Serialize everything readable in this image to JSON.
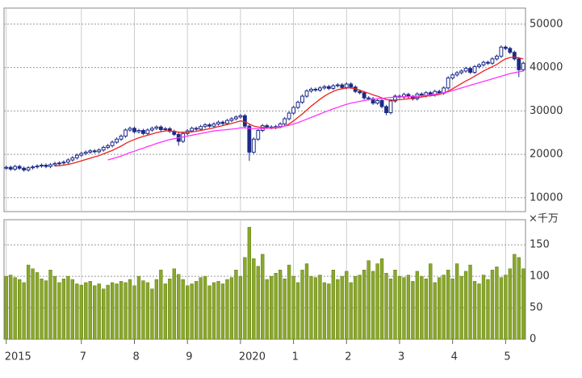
{
  "chart_data": [
    {
      "type": "candlestick",
      "open": [
        16800,
        17000,
        16600,
        17200,
        16800,
        16400,
        16900,
        17100,
        17300,
        17500,
        17200,
        17600,
        17900,
        18000,
        18200,
        18700,
        19200,
        19800,
        20200,
        20500,
        20800,
        20600,
        21000,
        21600,
        22000,
        22800,
        23500,
        24200,
        25600,
        26000,
        25200,
        25500,
        24800,
        25600,
        26000,
        26300,
        25700,
        25900,
        25300,
        24600,
        23000,
        24800,
        25400,
        26000,
        25800,
        26400,
        26800,
        26500,
        27000,
        27400,
        27100,
        27800,
        28200,
        28600,
        28900,
        26500,
        20500,
        23500,
        25500,
        26600,
        26300,
        26200,
        26400,
        27000,
        28200,
        29500,
        30800,
        32000,
        33400,
        34600,
        35000,
        34800,
        35300,
        35600,
        35200,
        35800,
        36000,
        35400,
        36200,
        35500,
        34500,
        34200,
        33000,
        32800,
        31800,
        32400,
        31000,
        29600,
        32300,
        33400,
        33200,
        33800,
        33300,
        32800,
        33900,
        33500,
        34200,
        33700,
        34500,
        34100,
        35300,
        37600,
        38300,
        38800,
        39200,
        39800,
        38900,
        40200,
        40600,
        41200,
        41000,
        42000,
        42600,
        44700,
        44400,
        43500,
        42000,
        39500
      ],
      "high": [
        17400,
        17400,
        17600,
        17600,
        17200,
        17300,
        17500,
        17700,
        17900,
        17900,
        18000,
        18300,
        18400,
        18600,
        19100,
        19600,
        20200,
        20600,
        20900,
        21200,
        21200,
        21400,
        22000,
        22400,
        23200,
        23900,
        24600,
        26000,
        26400,
        26400,
        25900,
        25900,
        26000,
        26400,
        26700,
        26700,
        26300,
        26300,
        25700,
        25000,
        25200,
        25800,
        26400,
        26400,
        26800,
        27200,
        27200,
        27400,
        27800,
        27800,
        28200,
        28600,
        29000,
        29300,
        29300,
        26900,
        23900,
        25900,
        27000,
        27000,
        26700,
        26800,
        27400,
        28600,
        29900,
        31200,
        32400,
        33800,
        35000,
        35400,
        35400,
        35700,
        36000,
        36000,
        36200,
        36400,
        36400,
        36600,
        36600,
        35900,
        34900,
        34600,
        33400,
        33200,
        32800,
        32800,
        31400,
        32700,
        33800,
        33800,
        34200,
        34200,
        33700,
        34300,
        34300,
        34600,
        34600,
        34900,
        34900,
        35700,
        38000,
        38700,
        39200,
        39600,
        40200,
        40200,
        40600,
        41000,
        41600,
        41600,
        42400,
        43000,
        45100,
        45100,
        44800,
        43900,
        42400,
        41400
      ],
      "low": [
        16400,
        16200,
        16200,
        16400,
        16000,
        16000,
        16500,
        16700,
        16900,
        16800,
        16800,
        17200,
        17500,
        17600,
        17800,
        18300,
        18800,
        19400,
        19800,
        20100,
        20200,
        20200,
        20600,
        21200,
        21600,
        22400,
        23100,
        23800,
        25200,
        24800,
        24800,
        24400,
        24400,
        25200,
        25600,
        25300,
        25300,
        24900,
        24200,
        22000,
        22600,
        24400,
        25000,
        25400,
        25400,
        26000,
        26100,
        26100,
        26600,
        26700,
        26700,
        27400,
        27800,
        28200,
        26000,
        18500,
        20100,
        23100,
        25100,
        25900,
        25800,
        25800,
        26000,
        26600,
        27800,
        29100,
        30400,
        31600,
        33000,
        34200,
        34400,
        34400,
        34900,
        34800,
        34800,
        35400,
        35000,
        35000,
        35100,
        34100,
        33800,
        32600,
        32400,
        31400,
        31400,
        30600,
        29000,
        29200,
        31900,
        32800,
        32800,
        32900,
        32400,
        32400,
        33100,
        33100,
        33300,
        33300,
        33700,
        33700,
        34900,
        37200,
        37900,
        38400,
        38800,
        38500,
        38500,
        39800,
        40200,
        40600,
        40600,
        41600,
        42200,
        44000,
        43100,
        41600,
        37800,
        39100
      ],
      "close": [
        17000,
        16600,
        17200,
        16800,
        16400,
        16900,
        17100,
        17300,
        17500,
        17200,
        17600,
        17900,
        18000,
        18200,
        18700,
        19200,
        19800,
        20200,
        20500,
        20800,
        20600,
        21000,
        21600,
        22000,
        22800,
        23500,
        24200,
        25600,
        26000,
        25200,
        25500,
        24800,
        25600,
        26000,
        26300,
        25700,
        25900,
        25300,
        24600,
        23000,
        24800,
        25400,
        26000,
        25800,
        26400,
        26800,
        26500,
        27000,
        27400,
        27100,
        27800,
        28200,
        28600,
        28900,
        26500,
        20500,
        23500,
        25500,
        26600,
        26300,
        26200,
        26400,
        27000,
        28200,
        29500,
        30800,
        32000,
        33400,
        34600,
        35000,
        34800,
        35300,
        35600,
        35200,
        35800,
        36000,
        35400,
        36200,
        35500,
        34500,
        34200,
        33000,
        32800,
        31800,
        32400,
        31000,
        29600,
        32300,
        33400,
        33200,
        33800,
        33300,
        32800,
        33900,
        33500,
        34200,
        33700,
        34500,
        34100,
        35300,
        37600,
        38300,
        38800,
        39200,
        39800,
        38900,
        40200,
        40600,
        41200,
        41000,
        42000,
        42600,
        44700,
        44400,
        43500,
        42000,
        39500,
        41000
      ],
      "up_color": "#ffffff",
      "down_color": "#1c2a87",
      "edge_color": "#1c2a87",
      "series": [
        {
          "color": "#e8231e",
          "values": [
            null,
            null,
            null,
            null,
            null,
            null,
            null,
            null,
            null,
            null,
            null,
            17300,
            17400,
            17500,
            17700,
            17900,
            18200,
            18500,
            18800,
            19100,
            19400,
            19700,
            20100,
            20500,
            20900,
            21400,
            21900,
            22500,
            23000,
            23400,
            23800,
            24100,
            24400,
            24700,
            25000,
            25200,
            25400,
            25400,
            25300,
            25100,
            25100,
            25100,
            25200,
            25300,
            25500,
            25700,
            25900,
            26100,
            26400,
            26600,
            26900,
            27100,
            27400,
            27700,
            27500,
            27000,
            26500,
            26300,
            26200,
            26100,
            26000,
            26100,
            26200,
            26500,
            27000,
            27700,
            28500,
            29300,
            30200,
            31100,
            31900,
            32700,
            33400,
            34000,
            34500,
            34900,
            35100,
            35300,
            35300,
            35100,
            34800,
            34400,
            34100,
            33700,
            33400,
            33000,
            32600,
            32500,
            32500,
            32600,
            32700,
            32800,
            33000,
            33100,
            33200,
            33400,
            33500,
            33600,
            33800,
            34100,
            34600,
            35100,
            35700,
            36300,
            36900,
            37400,
            38000,
            38600,
            39200,
            39700,
            40200,
            40700,
            41400,
            42000,
            42300,
            42400,
            42200,
            42000
          ]
        },
        {
          "color": "#ff33ff",
          "values": [
            null,
            null,
            null,
            null,
            null,
            null,
            null,
            null,
            null,
            null,
            null,
            null,
            null,
            null,
            null,
            null,
            null,
            null,
            null,
            null,
            null,
            null,
            null,
            18700,
            19000,
            19300,
            19600,
            20000,
            20400,
            20700,
            21100,
            21400,
            21800,
            22100,
            22500,
            22800,
            23100,
            23400,
            23600,
            23800,
            24000,
            24200,
            24400,
            24600,
            24800,
            25000,
            25200,
            25400,
            25500,
            25600,
            25700,
            25800,
            25900,
            26100,
            26100,
            26000,
            25900,
            25900,
            25900,
            26000,
            26100,
            26200,
            26300,
            26500,
            26700,
            27000,
            27300,
            27700,
            28100,
            28500,
            28900,
            29300,
            29700,
            30100,
            30500,
            30800,
            31200,
            31500,
            31800,
            32000,
            32200,
            32400,
            32600,
            32700,
            32800,
            32900,
            33000,
            33100,
            33200,
            33200,
            33300,
            33300,
            33400,
            33400,
            33500,
            33600,
            33700,
            33800,
            34000,
            34200,
            34400,
            34700,
            35000,
            35300,
            35600,
            35900,
            36200,
            36500,
            36800,
            37100,
            37400,
            37700,
            38000,
            38300,
            38600,
            38800,
            39000,
            39200
          ]
        }
      ],
      "ylim": [
        6800,
        53700
      ],
      "yticks": [
        10000,
        20000,
        30000,
        40000,
        50000
      ],
      "grid": true
    },
    {
      "type": "bar",
      "unit_label": "×千万",
      "color": "#8aa82a",
      "edge_color": "#5f7a12",
      "categories": [
        "2015",
        null,
        null,
        null,
        null,
        null,
        null,
        null,
        null,
        null,
        null,
        null,
        null,
        null,
        null,
        null,
        null,
        "7",
        null,
        null,
        null,
        null,
        null,
        null,
        null,
        null,
        null,
        null,
        null,
        "8",
        null,
        null,
        null,
        null,
        null,
        null,
        null,
        null,
        null,
        null,
        null,
        "9",
        null,
        null,
        null,
        null,
        null,
        null,
        null,
        null,
        null,
        null,
        null,
        "2020",
        null,
        null,
        null,
        null,
        null,
        null,
        null,
        null,
        null,
        null,
        null,
        "1",
        null,
        null,
        null,
        null,
        null,
        null,
        null,
        null,
        null,
        null,
        null,
        "2",
        null,
        null,
        null,
        null,
        null,
        null,
        null,
        null,
        null,
        null,
        null,
        "3",
        null,
        null,
        null,
        null,
        null,
        null,
        null,
        null,
        null,
        null,
        null,
        "4",
        null,
        null,
        null,
        null,
        null,
        null,
        null,
        null,
        null,
        null,
        null,
        "5",
        null,
        null,
        null,
        null
      ],
      "values": [
        100,
        102,
        98,
        95,
        90,
        118,
        112,
        106,
        96,
        93,
        110,
        100,
        90,
        96,
        100,
        95,
        88,
        86,
        90,
        92,
        85,
        88,
        80,
        86,
        90,
        88,
        92,
        90,
        95,
        85,
        100,
        93,
        90,
        80,
        95,
        110,
        88,
        96,
        112,
        103,
        95,
        85,
        88,
        92,
        98,
        100,
        85,
        90,
        92,
        88,
        95,
        98,
        110,
        100,
        130,
        178,
        128,
        116,
        135,
        95,
        100,
        105,
        110,
        96,
        118,
        100,
        90,
        110,
        120,
        100,
        98,
        102,
        90,
        88,
        110,
        95,
        100,
        108,
        90,
        100,
        102,
        110,
        125,
        108,
        120,
        128,
        105,
        96,
        110,
        100,
        98,
        102,
        92,
        108,
        100,
        96,
        120,
        90,
        98,
        102,
        110,
        96,
        120,
        100,
        108,
        118,
        92,
        88,
        102,
        95,
        110,
        115,
        98,
        102,
        112,
        135,
        130,
        112
      ],
      "ylim": [
        0,
        190
      ],
      "yticks": [
        0,
        50,
        100,
        150
      ],
      "grid": true
    }
  ]
}
